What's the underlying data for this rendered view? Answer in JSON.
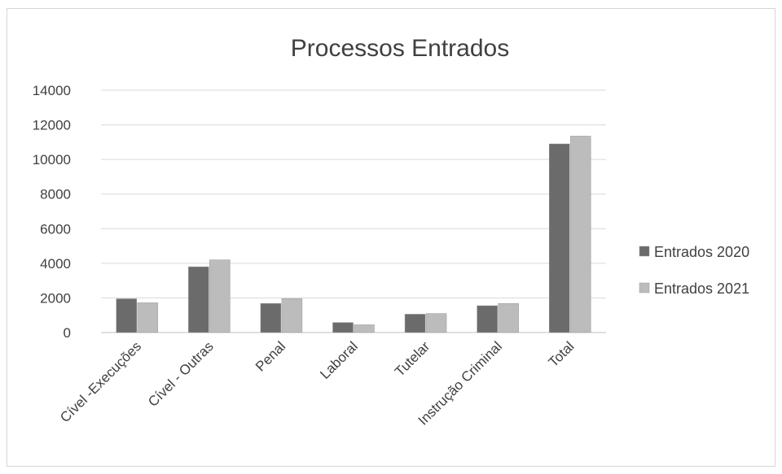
{
  "chart_data": {
    "type": "bar",
    "title": "Processos Entrados",
    "categories": [
      "Cível -Execuções",
      "Cível - Outras",
      "Penal",
      "Laboral",
      "Tutelar",
      "Instrução Criminal",
      "Total"
    ],
    "series": [
      {
        "name": "Entrados 2020",
        "values": [
          1950,
          3800,
          1680,
          580,
          1060,
          1550,
          10900
        ],
        "color": "#6b6b6b"
      },
      {
        "name": "Entrados 2021",
        "values": [
          1720,
          4200,
          1960,
          450,
          1100,
          1680,
          11350
        ],
        "color": "#bcbcbc"
      }
    ],
    "ylim": [
      0,
      14000
    ],
    "yticks": [
      0,
      2000,
      4000,
      6000,
      8000,
      10000,
      12000,
      14000
    ],
    "grid": true,
    "legend": "right"
  }
}
